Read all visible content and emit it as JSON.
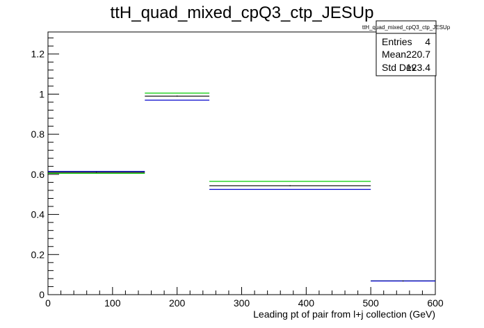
{
  "chart_data": {
    "type": "line",
    "title": "ttH_quad_mixed_cpQ3_ctp_JESUp",
    "xlabel": "Leading pt of pair from l+j collection (GeV)",
    "ylabel": "",
    "xlim": [
      0,
      600
    ],
    "ylim": [
      0,
      1.31
    ],
    "x_ticks": [
      0,
      100,
      200,
      300,
      400,
      500,
      600
    ],
    "x_tick_labels": [
      "0",
      "100",
      "200",
      "300",
      "400",
      "500",
      "600"
    ],
    "y_ticks": [
      0,
      0.2,
      0.4,
      0.6,
      0.8,
      1,
      1.2
    ],
    "y_tick_labels": [
      "0",
      "0.2",
      "0.4",
      "0.6",
      "0.8",
      "1",
      "1.2"
    ],
    "grid": false,
    "bin_edges": [
      0,
      150,
      250,
      500,
      600
    ],
    "series": [
      {
        "values": [
          0.605,
          1.005,
          0.565,
          0.068
        ],
        "color": "#00cc00"
      },
      {
        "values": [
          0.61,
          0.99,
          0.543,
          0.068
        ],
        "color": "#000000"
      },
      {
        "values": [
          0.615,
          0.97,
          0.525,
          0.068
        ],
        "color": "#0000cc"
      }
    ],
    "stats_box": {
      "header": "ttH_quad_mixed_cpQ3_ctp_JESUp",
      "rows": [
        {
          "label": "Entries",
          "value": "4"
        },
        {
          "label": "Mean",
          "value": "220.7"
        },
        {
          "label": "Std Dev",
          "value": "123.4"
        }
      ]
    }
  }
}
